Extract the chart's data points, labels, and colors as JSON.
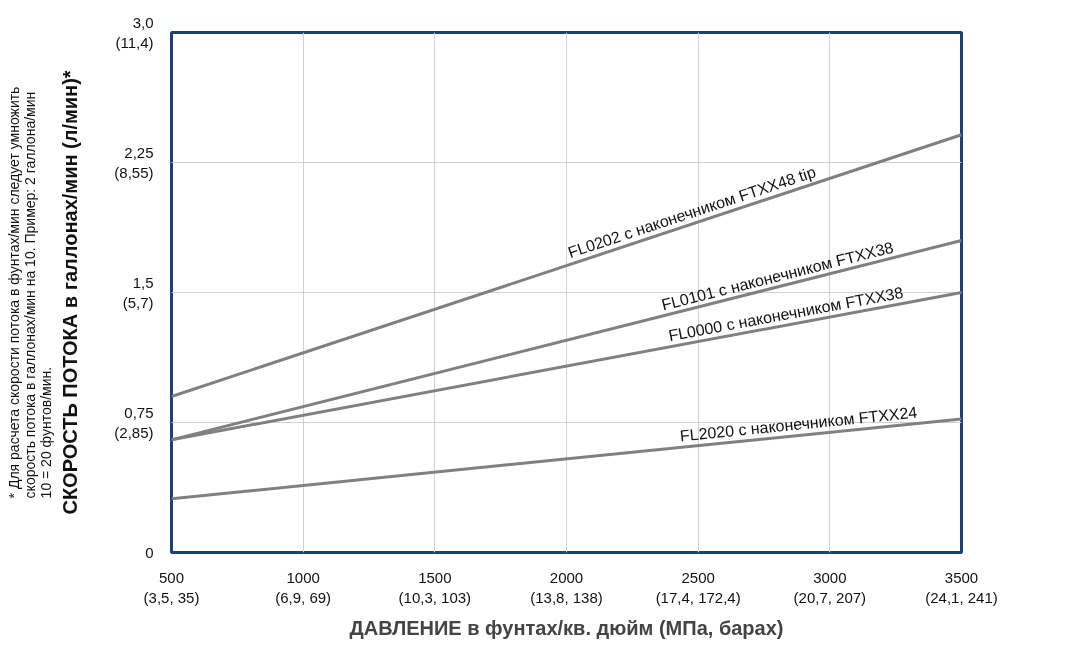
{
  "chart_data": {
    "type": "line",
    "xlabel": "ДАВЛЕНИЕ в фунтах/кв. дюйм (МПа, барах)",
    "y2label": "СКОРОСТЬ ПОТОКА в галлонах/мин (л/мин)*",
    "x": [
      500,
      3500
    ],
    "series": [
      {
        "color": "#808080",
        "values": [
          0.9,
          2.41
        ]
      },
      {
        "color": "#808080",
        "values": [
          0.65,
          1.8
        ]
      },
      {
        "color": "#808080",
        "values": [
          0.65,
          1.5
        ]
      },
      {
        "color": "#808080",
        "values": [
          0.31,
          0.77
        ]
      }
    ],
    "xlim": [
      500,
      3500
    ],
    "ylim": [
      0,
      3.0
    ],
    "xticks": [
      500,
      1000,
      1500,
      2000,
      2500,
      3000,
      3500
    ],
    "yticks": [
      0,
      {
        "value": 0.75,
        "label": "0,75"
      },
      {
        "value": 1.5,
        "label": "1,5"
      },
      {
        "value": 2.25,
        "label": "2,25"
      },
      {
        "value": 3.0,
        "label": "3,0"
      }
    ],
    "y2lim": [
      0,
      11.4
    ],
    "y2ticks": [
      {
        "value": 2.85,
        "label": "(2,85)"
      },
      {
        "value": 5.7,
        "label": "(5,7)"
      },
      {
        "value": 8.55,
        "label": "(8,55)"
      },
      {
        "value": 11.4,
        "label": "(11,4)"
      }
    ],
    "grid": true,
    "marker": "none",
    "line_style": "solid",
    "annotations": [
      {
        "text": "FL0202 с наконечником FTXX48 tip",
        "x": 2486,
        "y": 1.9
      },
      {
        "text": "FL0101 с наконечником FTXX38",
        "x": 2809,
        "y": 1.53
      },
      {
        "text": "FL0000 с наконечником FTXX38",
        "x": 2839,
        "y": 1.31
      },
      {
        "text": "FL2020 с наконечником FTXX24",
        "x": 2885,
        "y": 0.675
      },
      "(3,5, 35)",
      "(6,9, 69)",
      "(10,3, 103)",
      "(13,8, 138)",
      "(17,4, 172,4)",
      "(20,7, 207)",
      "(24,1, 241)",
      "* Для расчета скорости потока в фунтах/мин следует умножить\nскорость потока в галлонах/мин на 10. Пример: 2 галлона/мин\n10 = 20 фунтов/мин."
    ]
  }
}
